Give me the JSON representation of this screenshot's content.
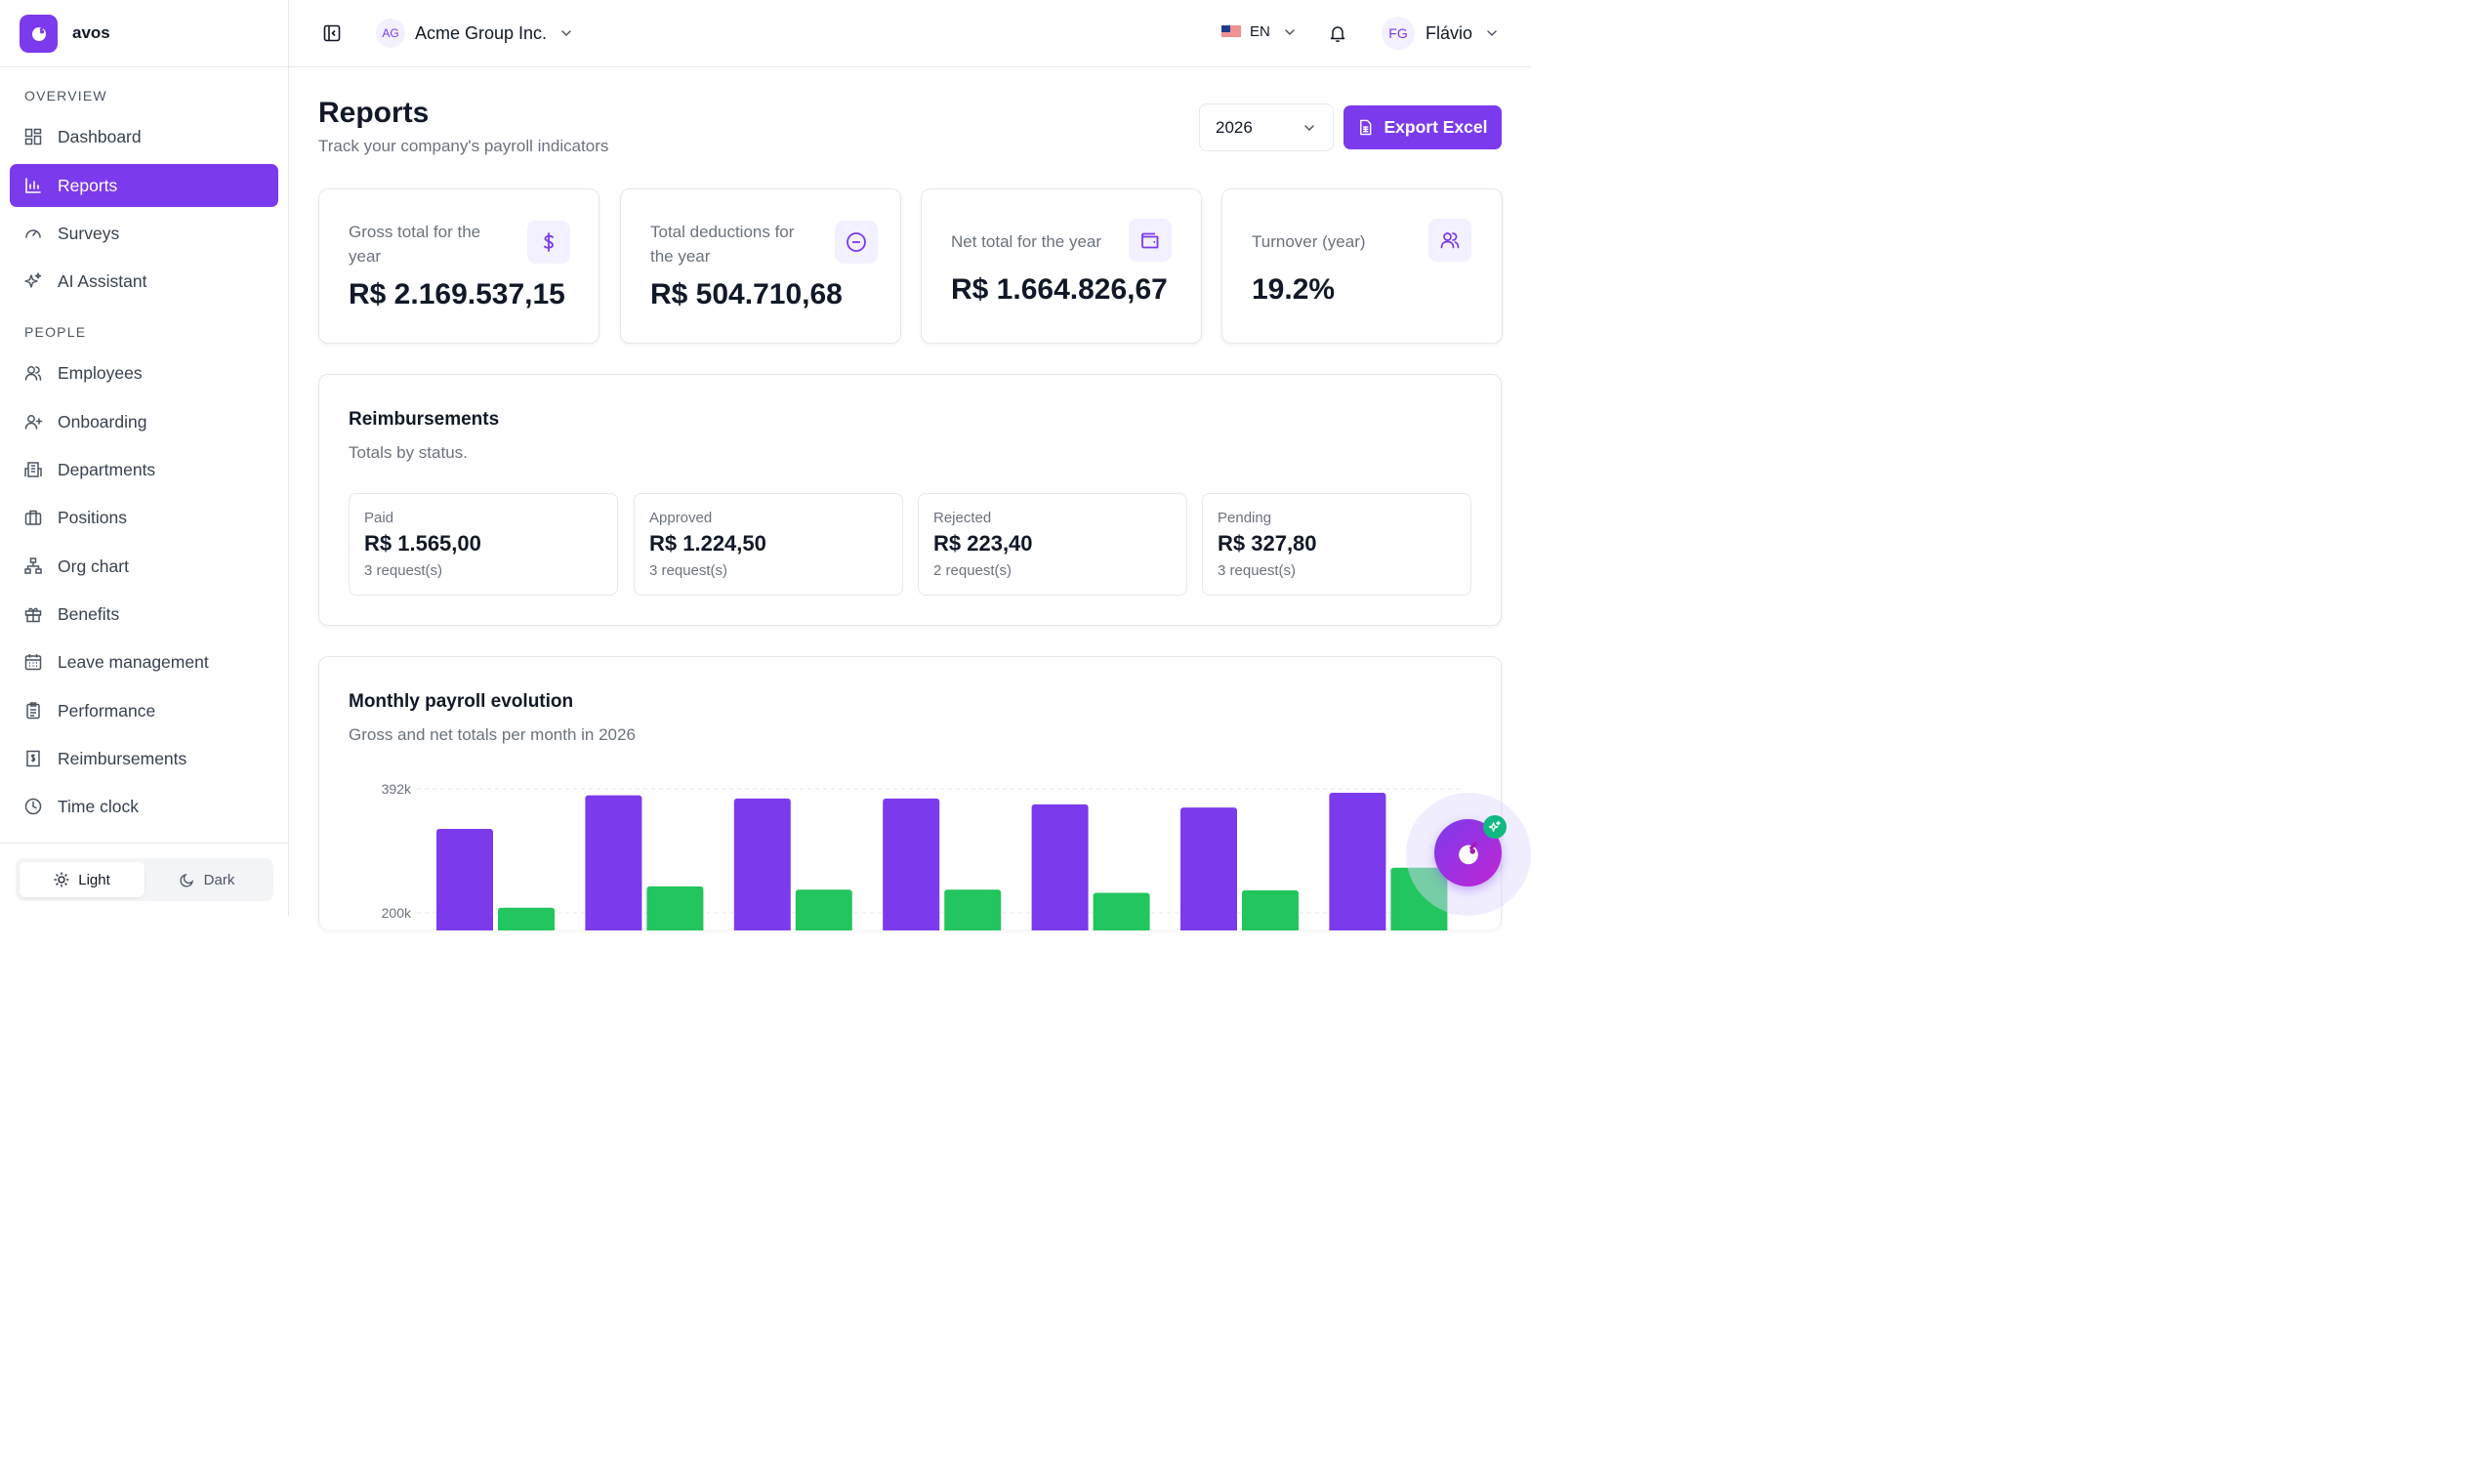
{
  "brand": {
    "name": "avos"
  },
  "sidebar": {
    "overview_label": "OVERVIEW",
    "people_label": "PEOPLE",
    "overview_items": [
      {
        "label": "Dashboard",
        "icon": "dashboard-icon"
      },
      {
        "label": "Reports",
        "icon": "bar-chart-icon",
        "active": true
      },
      {
        "label": "Surveys",
        "icon": "gauge-icon"
      },
      {
        "label": "AI Assistant",
        "icon": "sparkles-icon"
      }
    ],
    "people_items": [
      {
        "label": "Employees",
        "icon": "users-icon"
      },
      {
        "label": "Onboarding",
        "icon": "user-plus-icon"
      },
      {
        "label": "Departments",
        "icon": "building-icon"
      },
      {
        "label": "Positions",
        "icon": "briefcase-icon"
      },
      {
        "label": "Org chart",
        "icon": "org-chart-icon"
      },
      {
        "label": "Benefits",
        "icon": "gift-icon"
      },
      {
        "label": "Leave management",
        "icon": "calendar-icon"
      },
      {
        "label": "Performance",
        "icon": "clipboard-icon"
      },
      {
        "label": "Reimbursements",
        "icon": "receipt-icon"
      },
      {
        "label": "Time clock",
        "icon": "clock-icon"
      }
    ],
    "theme": {
      "light": "Light",
      "dark": "Dark",
      "selected": "Light"
    }
  },
  "header": {
    "org_initials": "AG",
    "org_name": "Acme Group Inc.",
    "language": "EN",
    "user_initials": "FG",
    "user_name": "Flávio"
  },
  "page": {
    "title": "Reports",
    "subtitle": "Track your company's payroll indicators",
    "year": "2026",
    "export_label": "Export Excel"
  },
  "kpis": [
    {
      "label": "Gross total for the year",
      "value": "R$ 2.169.537,15",
      "icon": "dollar-icon"
    },
    {
      "label": "Total deductions for the year",
      "value": "R$ 504.710,68",
      "icon": "minus-circle-icon"
    },
    {
      "label": "Net total for the year",
      "value": "R$ 1.664.826,67",
      "icon": "wallet-icon"
    },
    {
      "label": "Turnover (year)",
      "value": "19.2%",
      "icon": "users-icon"
    }
  ],
  "reimbursements": {
    "title": "Reimbursements",
    "subtitle": "Totals by status.",
    "statuses": [
      {
        "label": "Paid",
        "value": "R$ 1.565,00",
        "count": "3 request(s)"
      },
      {
        "label": "Approved",
        "value": "R$ 1.224,50",
        "count": "3 request(s)"
      },
      {
        "label": "Rejected",
        "value": "R$ 223,40",
        "count": "2 request(s)"
      },
      {
        "label": "Pending",
        "value": "R$ 327,80",
        "count": "3 request(s)"
      }
    ]
  },
  "chart": {
    "title": "Monthly payroll evolution",
    "subtitle": "Gross and net totals per month in 2026"
  },
  "chart_data": {
    "type": "bar",
    "title": "Monthly payroll evolution",
    "subtitle": "Gross and net totals per month in 2026",
    "y_tick_labels": [
      "392k",
      "200k"
    ],
    "y_ticks": [
      392000,
      200000
    ],
    "ylim": [
      0,
      392000
    ],
    "grid": true,
    "colors": {
      "gross": "#7c3aed",
      "net": "#22c55e"
    },
    "series": [
      {
        "key": "gross",
        "values": [
          330000,
          382000,
          377000,
          377000,
          368000,
          363000,
          386000
        ]
      },
      {
        "key": "net",
        "values": [
          208000,
          241000,
          236000,
          236000,
          231000,
          235000,
          270000
        ]
      }
    ]
  },
  "colors": {
    "accent": "#7c3aed",
    "net": "#22c55e",
    "badge": "#10b981"
  }
}
